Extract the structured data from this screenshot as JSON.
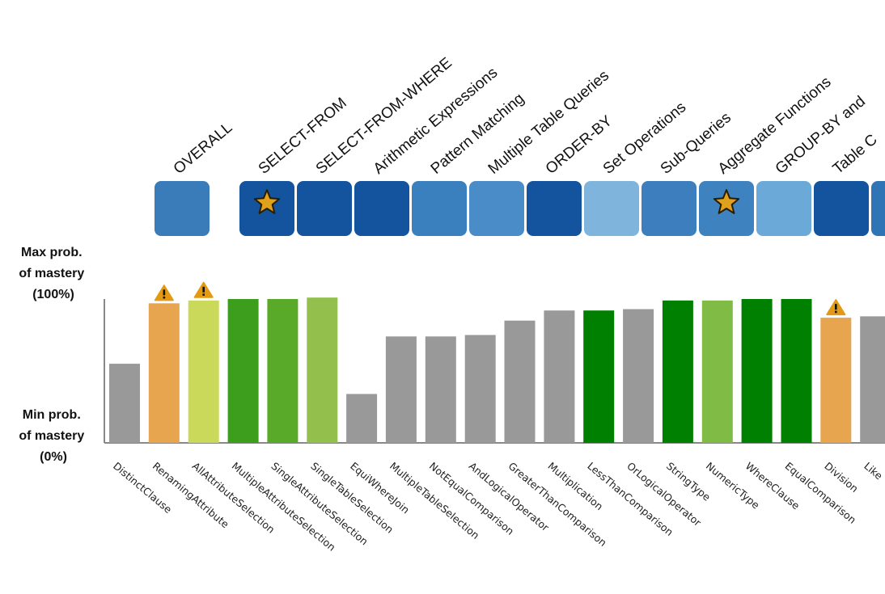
{
  "topics": {
    "labels": [
      "OVERALL",
      "SELECT-FROM",
      "SELECT-FROM-WHERE",
      "Arithmetic Expressions",
      "Pattern Matching",
      "Multiple Table Queries",
      "ORDER-BY",
      "Set Operations",
      "Sub-Queries",
      "Aggregate Functions",
      "GROUP-BY and",
      "Table C",
      ""
    ],
    "colors": [
      "#3a7cba",
      "#14539e",
      "#14539e",
      "#14539e",
      "#3a80bf",
      "#4a8cc7",
      "#14539e",
      "#7fb5dd",
      "#3d7fbe",
      "#3f82c0",
      "#6aa9d8",
      "#14539e",
      "#2f74b5"
    ],
    "starred": [
      false,
      true,
      false,
      false,
      false,
      false,
      false,
      false,
      false,
      true,
      false,
      false,
      false
    ]
  },
  "axis": {
    "max_label": [
      "Max prob.",
      "of mastery",
      "(100%)"
    ],
    "min_label": [
      "Min prob.",
      "of mastery",
      "(0%)"
    ]
  },
  "chart_data": {
    "type": "bar",
    "categories": [
      "DistinctClause",
      "RenamingAttribute",
      "AllAttributeSelection",
      "MultipleAttributeSelection",
      "SingleAttributeSelection",
      "SingleTableSelection",
      "EquiWhereJoin",
      "MultipleTableSelection",
      "NotEqualComparison",
      "AndLogicalOperator",
      "GreaterThanComparison",
      "Multiplication",
      "LessThanComparison",
      "OrLogicalOperator",
      "StringType",
      "NumericType",
      "WhereClause",
      "EqualComparison",
      "Division",
      "Like"
    ],
    "values": [
      0.55,
      0.97,
      0.99,
      1.0,
      1.0,
      1.01,
      0.34,
      0.74,
      0.74,
      0.75,
      0.85,
      0.92,
      0.92,
      0.93,
      0.99,
      0.99,
      1.0,
      1.0,
      0.87,
      0.88
    ],
    "colors": [
      "#999999",
      "#e8a54f",
      "#cbd95a",
      "#3d9e1e",
      "#5aaa2a",
      "#93c04c",
      "#999999",
      "#999999",
      "#999999",
      "#999999",
      "#999999",
      "#999999",
      "#008000",
      "#999999",
      "#008000",
      "#7fbb45",
      "#008000",
      "#008000",
      "#e8a54f",
      "#999999"
    ],
    "warnings": [
      false,
      true,
      true,
      false,
      false,
      false,
      false,
      false,
      false,
      false,
      false,
      false,
      false,
      false,
      false,
      false,
      false,
      false,
      true,
      false
    ],
    "ylim": [
      0,
      1
    ]
  }
}
